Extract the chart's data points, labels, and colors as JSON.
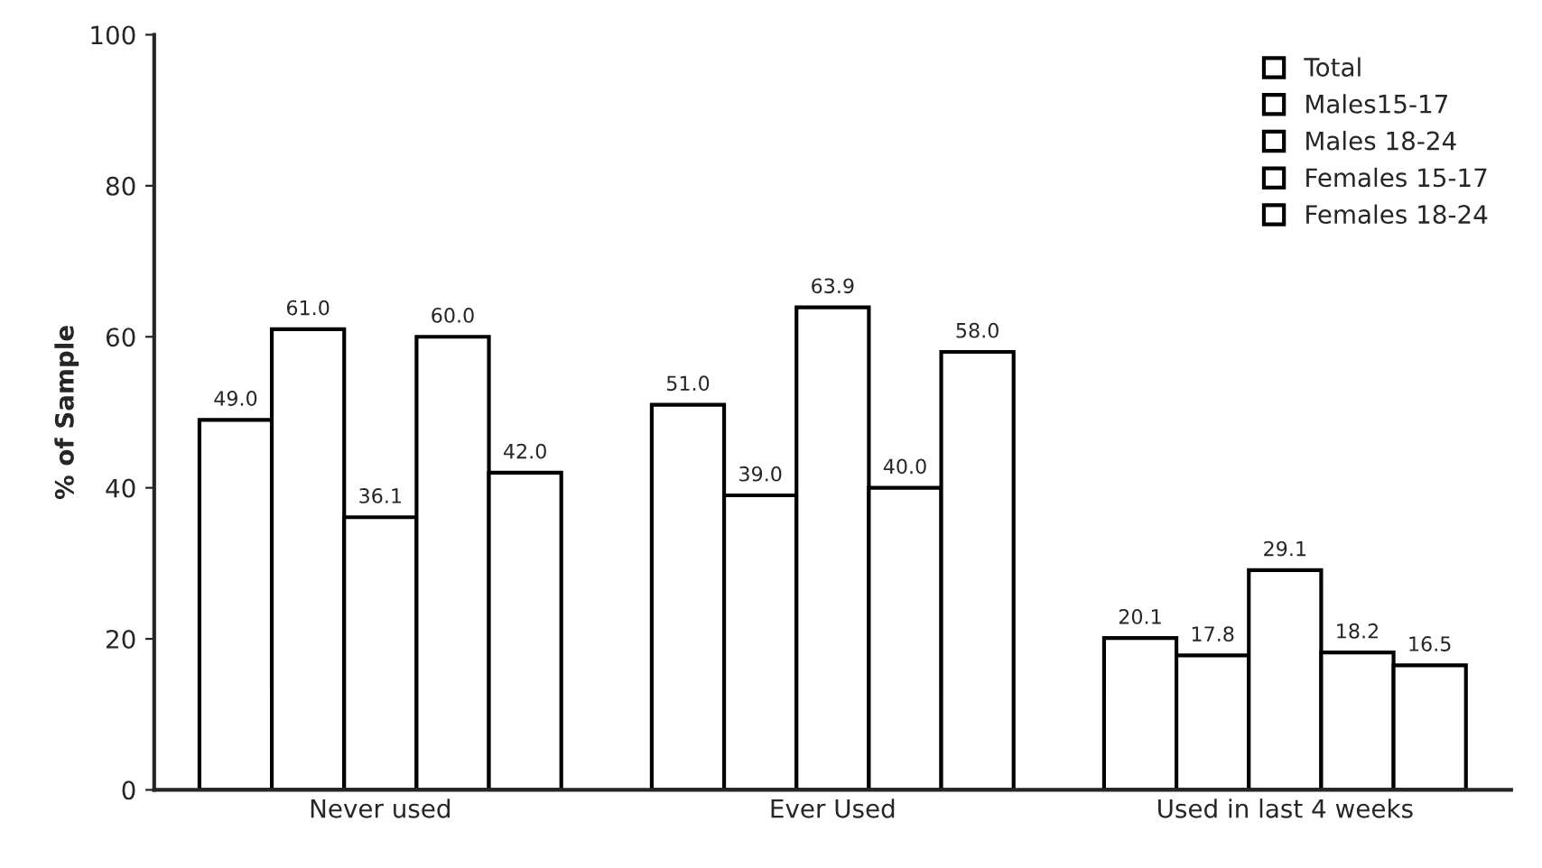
{
  "chart_data": {
    "type": "bar",
    "ylabel": "% of Sample",
    "categories": [
      "Never used",
      "Ever Used",
      "Used in last 4 weeks"
    ],
    "series": [
      {
        "name": "Total",
        "color": "#ffffff",
        "values": [
          49.0,
          51.0,
          20.1
        ],
        "value_labels": [
          "49.0",
          "51.0",
          "20.1"
        ]
      },
      {
        "name": "Males15-17",
        "color": "#ffffff",
        "values": [
          61.0,
          39.0,
          17.8
        ],
        "value_labels": [
          "61.0",
          "39.0",
          "17.8"
        ]
      },
      {
        "name": "Males 18-24",
        "color": "#ffffff",
        "values": [
          36.1,
          63.9,
          29.1
        ],
        "value_labels": [
          "36.1",
          "63.9",
          "29.1"
        ]
      },
      {
        "name": "Females 15-17",
        "color": "#ffffff",
        "values": [
          60.0,
          40.0,
          18.2
        ],
        "value_labels": [
          "60.0",
          "40.0",
          "18.2"
        ]
      },
      {
        "name": "Females 18-24",
        "color": "#ffffff",
        "values": [
          42.0,
          58.0,
          16.5
        ],
        "value_labels": [
          "42.0",
          "58.0",
          "16.5"
        ]
      }
    ],
    "ylim": [
      0,
      100
    ],
    "yticks": [
      0,
      20,
      40,
      60,
      80,
      100
    ],
    "legend": "top right",
    "grid": false
  }
}
